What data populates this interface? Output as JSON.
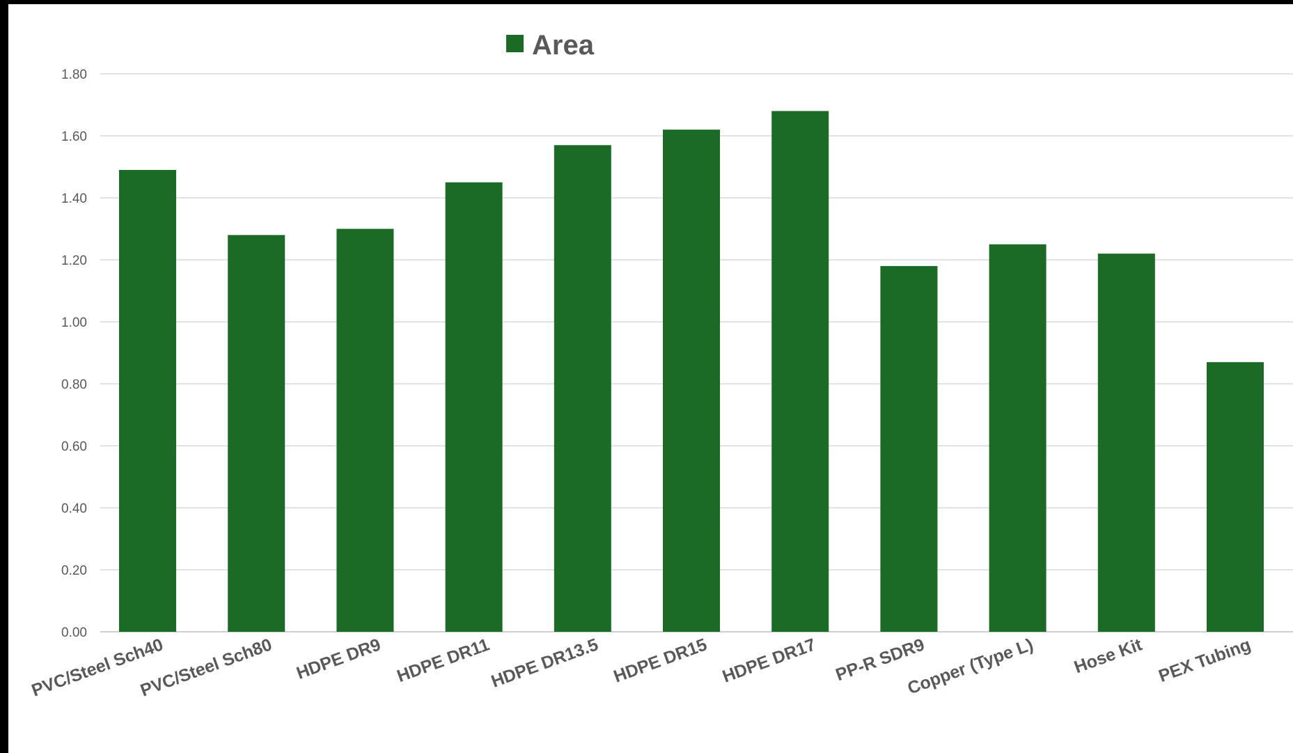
{
  "colors": {
    "bar": "#1b6b26",
    "background": "#ffffff",
    "text": "#595959",
    "grid": "#d9d9d9"
  },
  "chart_data": {
    "type": "bar",
    "title": "",
    "xlabel": "",
    "ylabel": "",
    "legend": {
      "position": "top",
      "entries": [
        "Area"
      ]
    },
    "grid": true,
    "ylim": [
      0,
      1.8
    ],
    "yticks": [
      "0.00",
      "0.20",
      "0.40",
      "0.60",
      "0.80",
      "1.00",
      "1.20",
      "1.40",
      "1.60",
      "1.80"
    ],
    "categories": [
      "PVC/Steel Sch40",
      "PVC/Steel Sch80",
      "HDPE DR9",
      "HDPE DR11",
      "HDPE DR13.5",
      "HDPE DR15",
      "HDPE DR17",
      "PP-R SDR9",
      "Copper (Type L)",
      "Hose Kit",
      "PEX Tubing"
    ],
    "series": [
      {
        "name": "Area",
        "values": [
          1.49,
          1.28,
          1.3,
          1.45,
          1.57,
          1.62,
          1.68,
          1.18,
          1.25,
          1.22,
          0.87
        ]
      }
    ]
  }
}
